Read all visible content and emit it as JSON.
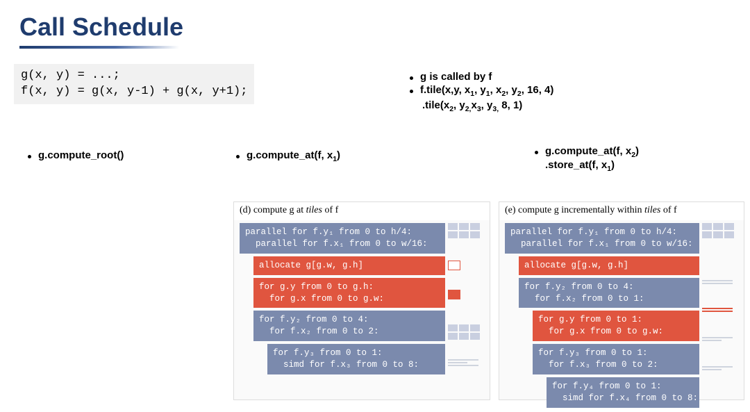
{
  "title": "Call Schedule",
  "code": "g(x, y) = ...;\nf(x, y) = g(x, y-1) + g(x, y+1);",
  "bullets_top": {
    "b1": "g  is called by f",
    "b2_html": "f.tile(x,y, x<sub>1</sub>, y<sub>1</sub>, x<sub>2</sub>, y<sub>2</sub>, 16, 4)",
    "b2_sub_html": ".tile(x<sub>2</sub>, y<sub>2,</sub>x<sub>3</sub>, y<sub>3,</sub> 8, 1)"
  },
  "bullets_mid": {
    "a": "g.compute_root()",
    "b_html": "g.compute_at(f, x<sub>1</sub>)",
    "c_line1_html": "g.compute_at(f, x<sub>2</sub>)",
    "c_line2_html": ".store_at(f, x<sub>1</sub>)"
  },
  "panel_d": {
    "title_prefix": "(d) compute g at ",
    "title_italic": "tiles",
    "title_suffix": " of f",
    "blocks": [
      {
        "color": "blue",
        "indent": 0,
        "text": "parallel for f.y₁ from 0 to h/4:\n  parallel for f.x₁ from 0 to w/16:"
      },
      {
        "color": "red",
        "indent": 1,
        "text": "allocate g[g.w, g.h]"
      },
      {
        "color": "red",
        "indent": 1,
        "text": "for g.y from 0 to g.h:\n  for g.x from 0 to g.w:"
      },
      {
        "color": "blue",
        "indent": 1,
        "text": "for f.y₂ from 0 to 4:\n  for f.x₂ from 0 to 2:"
      },
      {
        "color": "blue",
        "indent": 2,
        "text": "for f.y₃ from 0 to 1:\n  simd for f.x₃ from 0 to 8:"
      }
    ]
  },
  "panel_e": {
    "title_prefix": "(e) compute g incrementally within ",
    "title_italic": "tiles",
    "title_suffix": " of f",
    "blocks": [
      {
        "color": "blue",
        "indent": 0,
        "text": "parallel for f.y₁ from 0 to h/4:\n  parallel for f.x₁ from 0 to w/16:"
      },
      {
        "color": "red",
        "indent": 1,
        "text": "allocate g[g.w, g.h]"
      },
      {
        "color": "blue",
        "indent": 1,
        "text": "for f.y₂ from 0 to 4:\n  for f.x₂ from 0 to 1:"
      },
      {
        "color": "red",
        "indent": 2,
        "text": "for g.y from 0 to 1:\n  for g.x from 0 to g.w:"
      },
      {
        "color": "blue",
        "indent": 2,
        "text": "for f.y₃ from 0 to 1:\n  for f.x₃ from 0 to 2:"
      },
      {
        "color": "blue",
        "indent": 3,
        "text": "for f.y₄ from 0 to 1:\n  simd for f.x₄ from 0 to 8:"
      }
    ]
  },
  "colors": {
    "title": "#1f3c6e",
    "block_blue": "#7b8aad",
    "block_red": "#e0553f",
    "codebox_bg": "#f1f1f1"
  }
}
